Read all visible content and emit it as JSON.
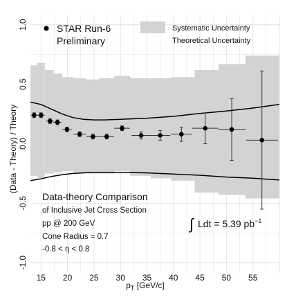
{
  "chart_data": {
    "type": "scatter",
    "xlabel_main": "p",
    "xlabel_sub": "T",
    "xlabel_unit": " [GeV/c]",
    "ylabel": "(Data - Theory) / Theory",
    "xlim": [
      13,
      60
    ],
    "ylim": [
      -1.08,
      1.08
    ],
    "x_ticks": [
      15,
      20,
      25,
      30,
      35,
      40,
      45,
      50,
      55
    ],
    "y_ticks": [
      -1.0,
      -0.5,
      0.0,
      0.5,
      1.0
    ],
    "y_tick_labels": [
      "-1.0",
      "-0.5",
      "0.0",
      "0.5",
      "1.0"
    ],
    "grid": true,
    "series": [
      {
        "name": "STAR Run-6 Preliminary",
        "x": [
          13.7,
          15.0,
          16.7,
          18.1,
          19.9,
          22.3,
          24.8,
          27.4,
          30.3,
          33.9,
          37.5,
          41.5,
          46.0,
          51.0,
          56.7
        ],
        "y": [
          0.24,
          0.24,
          0.19,
          0.18,
          0.12,
          0.08,
          0.06,
          0.06,
          0.13,
          0.07,
          0.07,
          0.08,
          0.13,
          0.12,
          0.03
        ],
        "xerr": [
          0.6,
          0.7,
          0.7,
          0.8,
          0.9,
          1.2,
          1.2,
          1.4,
          1.5,
          1.8,
          1.9,
          2.0,
          2.5,
          2.6,
          3.0
        ],
        "yerr_lo": [
          0.02,
          0.02,
          0.02,
          0.02,
          0.02,
          0.02,
          0.02,
          0.02,
          0.02,
          0.03,
          0.04,
          0.06,
          0.13,
          0.26,
          0.58
        ],
        "yerr_hi": [
          0.02,
          0.02,
          0.02,
          0.02,
          0.02,
          0.02,
          0.02,
          0.02,
          0.02,
          0.03,
          0.04,
          0.06,
          0.13,
          0.26,
          0.58
        ],
        "color": "#000000"
      }
    ],
    "systematic_band": {
      "name": "Systematic Uncertainty",
      "color": "#d3d3d3",
      "bins": [
        {
          "x0": 13.0,
          "x1": 14.3,
          "lo": -0.27,
          "hi": 0.66
        },
        {
          "x0": 14.3,
          "x1": 15.7,
          "lo": -0.29,
          "hi": 0.68
        },
        {
          "x0": 15.7,
          "x1": 17.4,
          "lo": -0.25,
          "hi": 0.62
        },
        {
          "x0": 17.4,
          "x1": 19.0,
          "lo": -0.24,
          "hi": 0.59
        },
        {
          "x0": 19.0,
          "x1": 21.1,
          "lo": -0.23,
          "hi": 0.56
        },
        {
          "x0": 21.1,
          "x1": 23.5,
          "lo": -0.24,
          "hi": 0.55
        },
        {
          "x0": 23.5,
          "x1": 26.0,
          "lo": -0.25,
          "hi": 0.54
        },
        {
          "x0": 26.0,
          "x1": 28.8,
          "lo": -0.25,
          "hi": 0.55
        },
        {
          "x0": 28.8,
          "x1": 31.8,
          "lo": -0.23,
          "hi": 0.57
        },
        {
          "x0": 31.8,
          "x1": 35.7,
          "lo": -0.27,
          "hi": 0.55
        },
        {
          "x0": 35.7,
          "x1": 39.5,
          "lo": -0.29,
          "hi": 0.55
        },
        {
          "x0": 39.5,
          "x1": 44.0,
          "lo": -0.31,
          "hi": 0.56
        },
        {
          "x0": 44.0,
          "x1": 48.5,
          "lo": -0.41,
          "hi": 0.62
        },
        {
          "x0": 48.5,
          "x1": 53.6,
          "lo": -0.43,
          "hi": 0.67
        },
        {
          "x0": 53.6,
          "x1": 60.0,
          "lo": -0.46,
          "hi": 0.74
        }
      ]
    },
    "theory_band": {
      "name": "Theoretical Uncertainty",
      "color": "#000000",
      "upper": {
        "x": [
          13,
          15,
          17,
          19,
          21,
          23,
          25,
          27,
          30,
          35,
          40,
          45,
          50,
          55,
          60
        ],
        "y": [
          0.35,
          0.33,
          0.29,
          0.25,
          0.22,
          0.205,
          0.2,
          0.2,
          0.205,
          0.215,
          0.23,
          0.255,
          0.275,
          0.3,
          0.33
        ]
      },
      "lower": {
        "x": [
          13,
          15,
          17,
          19,
          21,
          23,
          25,
          27,
          30,
          35,
          40,
          45,
          50,
          55,
          60
        ],
        "y": [
          -0.31,
          -0.295,
          -0.275,
          -0.26,
          -0.25,
          -0.245,
          -0.24,
          -0.24,
          -0.24,
          -0.245,
          -0.255,
          -0.265,
          -0.28,
          -0.29,
          -0.305
        ]
      }
    },
    "legend": {
      "placement": "top",
      "data_label_line1": "STAR Run-6",
      "data_label_line2": "Preliminary",
      "sys_label": "Systematic Uncertainty",
      "theory_label": "Theoretical Uncertainty"
    },
    "annotations": {
      "heading": "Data-theory Comparison",
      "line1": "of Inclusive Jet Cross Section",
      "line2": "pp @ 200 GeV",
      "line3": "Cone Radius = 0.7",
      "line4_prefix": "-0.8 < ",
      "line4_symbol": "η",
      "line4_suffix": " < 0.8",
      "lumi_integral": "∫",
      "lumi_text": "Ldt = 5.39 pb",
      "lumi_exp": "−1"
    }
  }
}
